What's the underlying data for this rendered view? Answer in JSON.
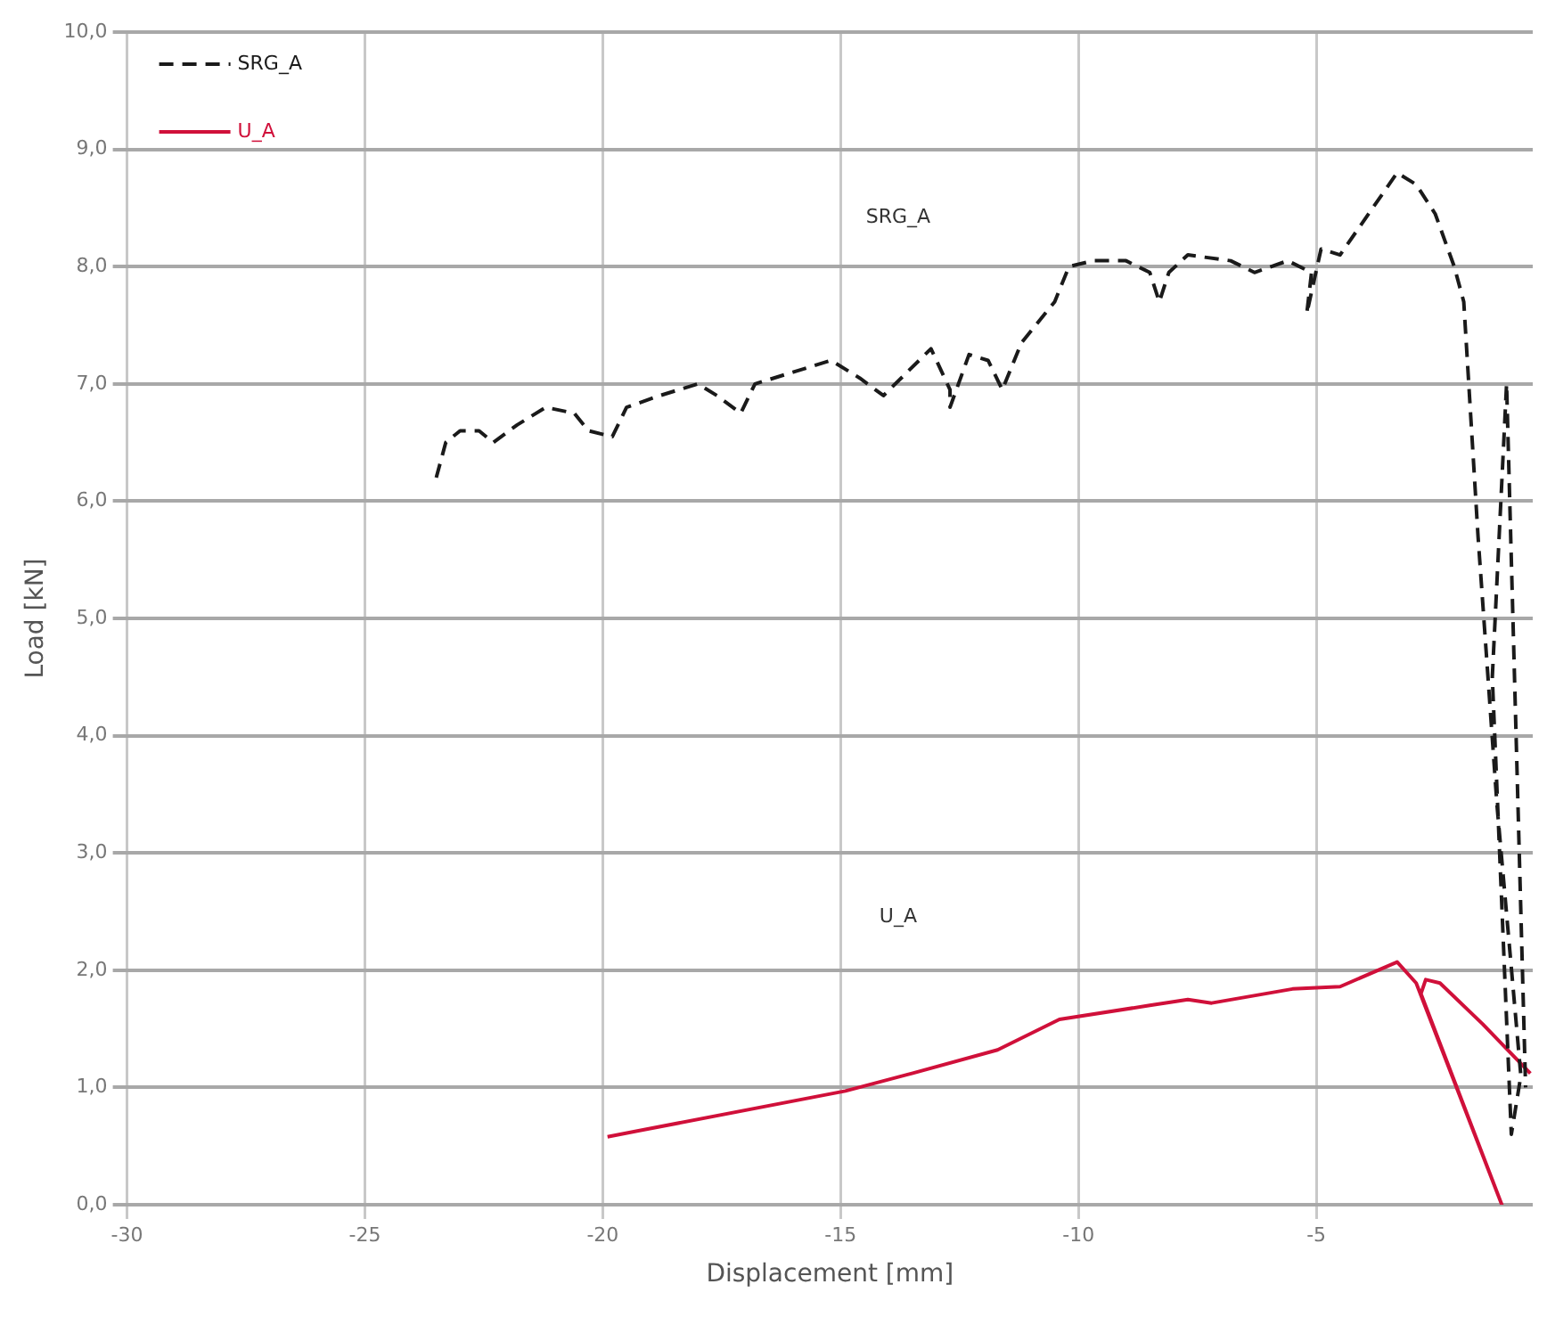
{
  "chart_data": {
    "type": "line",
    "xlabel": "Displacement [mm]",
    "ylabel": "Load [kN]",
    "xlim": [
      -30,
      -0.45
    ],
    "xticks": [
      -30,
      -25,
      -20,
      -15,
      -10,
      -5
    ],
    "ylim": [
      0,
      10
    ],
    "yticks": [
      {
        "value": 0,
        "label": "0,0"
      },
      {
        "value": 1,
        "label": "1,0"
      },
      {
        "value": 2,
        "label": "2,0"
      },
      {
        "value": 3,
        "label": "3,0"
      },
      {
        "value": 4,
        "label": "4,0"
      },
      {
        "value": 5,
        "label": "5,0"
      },
      {
        "value": 6,
        "label": "6,0"
      },
      {
        "value": 7,
        "label": "7,0"
      },
      {
        "value": 8,
        "label": "8,0"
      },
      {
        "value": 9,
        "label": "9,0"
      },
      {
        "value": 10,
        "label": "10,0"
      }
    ],
    "grid": true,
    "legend": "top left",
    "marker": "none",
    "series": [
      {
        "name": "SRG_A",
        "color": "#1a1a1a",
        "line_style": "dashed",
        "x": [
          -23.5,
          -23.3,
          -23.0,
          -22.6,
          -22.3,
          -21.8,
          -21.2,
          -20.6,
          -20.3,
          -19.8,
          -19.5,
          -18.8,
          -18.0,
          -17.6,
          -17.1,
          -16.8,
          -16.0,
          -15.2,
          -14.6,
          -14.1,
          -13.6,
          -13.1,
          -12.7,
          -12.7,
          -12.3,
          -11.9,
          -11.6,
          -11.2,
          -10.5,
          -10.2,
          -9.7,
          -9.0,
          -8.5,
          -8.3,
          -8.1,
          -7.7,
          -6.8,
          -6.3,
          -5.6,
          -5.1,
          -5.2,
          -4.9,
          -4.5,
          -3.3,
          -2.9,
          -2.5,
          -2.1,
          -1.9,
          -1.6,
          -1.2,
          -0.7,
          -0.9,
          -1.3,
          -1.0,
          -0.6
        ],
        "values": [
          6.2,
          6.5,
          6.6,
          6.6,
          6.5,
          6.65,
          6.8,
          6.75,
          6.6,
          6.55,
          6.8,
          6.9,
          7.0,
          6.9,
          6.75,
          7.0,
          7.1,
          7.2,
          7.05,
          6.9,
          7.1,
          7.3,
          6.95,
          6.8,
          7.25,
          7.2,
          6.95,
          7.35,
          7.7,
          8.0,
          8.05,
          8.05,
          7.95,
          7.7,
          7.95,
          8.1,
          8.05,
          7.95,
          8.05,
          7.95,
          7.6,
          8.15,
          8.1,
          8.8,
          8.7,
          8.45,
          8.0,
          7.7,
          5.7,
          3.4,
          1.1,
          0.6,
          4.5,
          7.0,
          1.0
        ]
      },
      {
        "name": "U_A",
        "color": "#d0103a",
        "line_style": "solid",
        "x": [
          -19.9,
          -14.9,
          -13.5,
          -11.7,
          -10.4,
          -8.5,
          -7.7,
          -7.2,
          -5.5,
          -4.5,
          -3.3,
          -2.9,
          -1.1,
          -2.8,
          -2.7,
          -2.4,
          -1.5,
          -0.5
        ],
        "values": [
          0.58,
          0.97,
          1.12,
          1.32,
          1.58,
          1.7,
          1.75,
          1.72,
          1.84,
          1.86,
          2.07,
          1.89,
          0.0,
          1.8,
          1.92,
          1.89,
          1.54,
          1.12
        ]
      }
    ],
    "annotations": [
      "SRG_A",
      "U_A"
    ]
  }
}
